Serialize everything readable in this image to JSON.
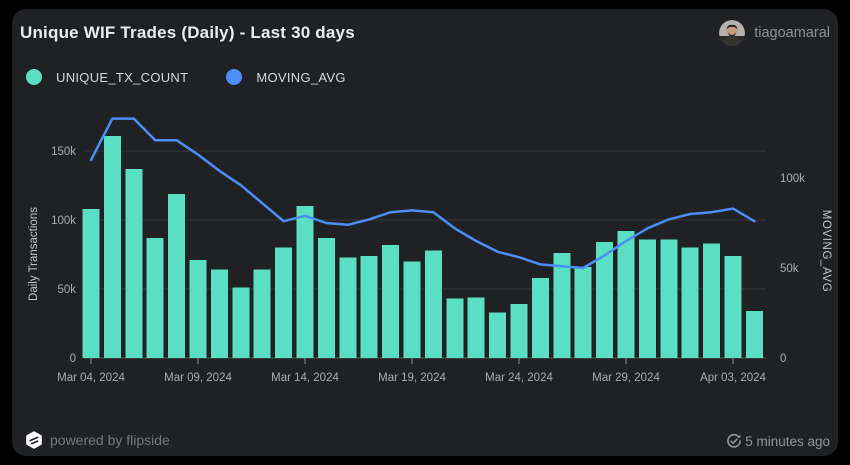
{
  "header": {
    "title": "Unique WIF Trades (Daily) - Last 30 days",
    "username": "tiagoamaral"
  },
  "legend": {
    "items": [
      {
        "label": "UNIQUE_TX_COUNT",
        "color": "#5ADFC2"
      },
      {
        "label": "MOVING_AVG",
        "color": "#4B8EF7"
      }
    ]
  },
  "footer": {
    "powered_by": "powered by flipside",
    "updated": "5 minutes ago"
  },
  "colors": {
    "background": "#000000",
    "card": "#202125",
    "bar": "#5ADFC2",
    "line": "#4B8EF7",
    "grid": "#35373B",
    "baseline": "#54575B",
    "tick_mark": "#8B8E92",
    "axis_text": "#A9ACB0",
    "axis_title": "#C3C6C9"
  },
  "chart_data": {
    "type": "bar",
    "note": "values are in thousands of transactions; bar series on left axis, line series on right axis",
    "title": "Unique WIF Trades (Daily) - Last 30 days",
    "categories": [
      "Mar 04, 2024",
      "Mar 05, 2024",
      "Mar 06, 2024",
      "Mar 07, 2024",
      "Mar 08, 2024",
      "Mar 09, 2024",
      "Mar 10, 2024",
      "Mar 11, 2024",
      "Mar 12, 2024",
      "Mar 13, 2024",
      "Mar 14, 2024",
      "Mar 15, 2024",
      "Mar 16, 2024",
      "Mar 17, 2024",
      "Mar 18, 2024",
      "Mar 19, 2024",
      "Mar 20, 2024",
      "Mar 21, 2024",
      "Mar 22, 2024",
      "Mar 23, 2024",
      "Mar 24, 2024",
      "Mar 25, 2024",
      "Mar 26, 2024",
      "Mar 27, 2024",
      "Mar 28, 2024",
      "Mar 29, 2024",
      "Mar 30, 2024",
      "Mar 31, 2024",
      "Apr 01, 2024",
      "Apr 02, 2024",
      "Apr 03, 2024",
      "Apr 04, 2024"
    ],
    "series": [
      {
        "name": "UNIQUE_TX_COUNT",
        "type": "bar",
        "axis": "left",
        "unit": "k",
        "values": [
          108,
          161,
          137,
          87,
          119,
          71,
          64,
          51,
          64,
          80,
          110,
          87,
          73,
          74,
          82,
          70,
          78,
          43,
          44,
          33,
          39,
          58,
          76,
          66,
          84,
          92,
          86,
          86,
          80,
          83,
          74,
          34
        ]
      },
      {
        "name": "MOVING_AVG",
        "type": "line",
        "axis": "right",
        "unit": "k",
        "values": [
          110,
          133,
          133,
          121,
          121,
          113,
          104,
          96,
          86,
          76,
          79,
          75,
          74,
          77,
          81,
          82,
          81,
          72,
          65,
          59,
          56,
          52,
          51,
          50,
          57,
          65,
          72,
          77,
          80,
          81,
          83,
          76
        ]
      }
    ],
    "y_axis_left": {
      "label": "Daily Transactions",
      "tick_values": [
        0,
        50,
        100,
        150
      ],
      "tick_labels": [
        "0",
        "50k",
        "100k",
        "150k"
      ],
      "range_k": [
        0,
        155
      ]
    },
    "y_axis_right": {
      "label": "MOVING_AVG",
      "tick_values": [
        0,
        50,
        100
      ],
      "tick_labels": [
        "0",
        "50k",
        "100k"
      ],
      "range_k": [
        0,
        139
      ]
    },
    "x_ticks": {
      "indices": [
        0,
        5,
        10,
        15,
        20,
        25,
        30
      ],
      "labels": [
        "Mar 04, 2024",
        "Mar 09, 2024",
        "Mar 14, 2024",
        "Mar 19, 2024",
        "Mar 24, 2024",
        "Mar 29, 2024",
        "Apr 03, 2024"
      ]
    },
    "grid": "horizontal",
    "legend_position": "top-left"
  }
}
